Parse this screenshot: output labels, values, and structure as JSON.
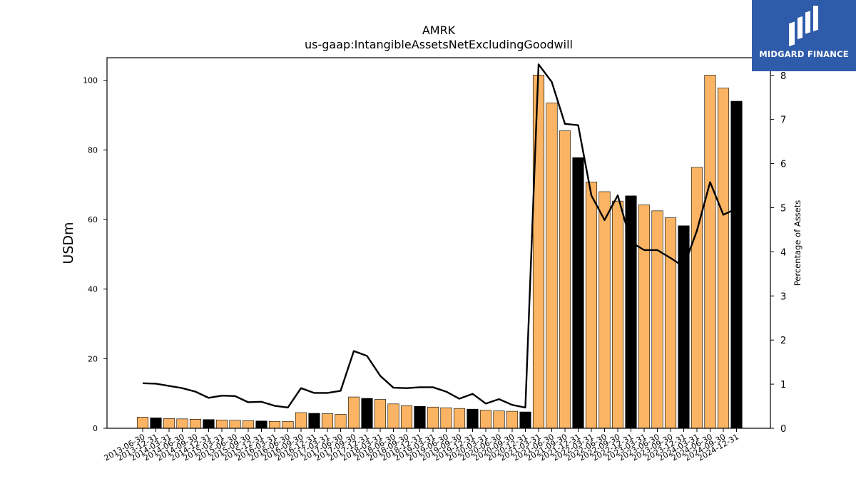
{
  "brand": {
    "name": "MIDGARD FINANCE",
    "bg_color": "#2f5bab",
    "icon": "midgard-mh-logo-icon"
  },
  "chart_data": {
    "type": "bar",
    "title": "AMRK",
    "subtitle": "us-gaap:IntangibleAssetsNetExcludingGoodwill",
    "ylabel": "USDm",
    "y2label": "Percentage of Assets",
    "ylim": [
      0,
      106.5
    ],
    "y2lim": [
      0,
      8.4
    ],
    "yticks": [
      0,
      20,
      40,
      60,
      80,
      100
    ],
    "y2ticks": [
      0,
      1,
      2,
      3,
      4,
      5,
      6,
      7,
      8
    ],
    "grid": false,
    "colors": {
      "bar": "#fbb463",
      "bar_highlight": "#000000",
      "line": "#000000"
    },
    "categories": [
      "2013-06-30",
      "2013-12-31",
      "2014-03-31",
      "2014-06-30",
      "2014-09-30",
      "2014-12-31",
      "2015-03-31",
      "2015-06-30",
      "2015-09-30",
      "2015-12-31",
      "2016-03-31",
      "2016-06-30",
      "2016-09-30",
      "2016-12-31",
      "2017-03-31",
      "2017-06-30",
      "2017-09-30",
      "2017-12-31",
      "2018-03-31",
      "2018-06-30",
      "2018-09-30",
      "2018-12-31",
      "2019-03-31",
      "2019-06-30",
      "2019-09-30",
      "2019-12-31",
      "2020-03-31",
      "2020-06-30",
      "2020-09-30",
      "2020-12-31",
      "2021-03-31",
      "2021-06-30",
      "2021-09-30",
      "2021-12-31",
      "2022-03-31",
      "2022-06-30",
      "2022-09-30",
      "2022-12-31",
      "2023-03-31",
      "2023-06-30",
      "2023-09-30",
      "2023-12-31",
      "2024-03-31",
      "2024-06-30",
      "2024-09-30",
      "2024-12-31"
    ],
    "series": [
      {
        "type": "bar",
        "values": [
          3.2,
          3.0,
          2.8,
          2.7,
          2.6,
          2.5,
          2.4,
          2.3,
          2.2,
          2.1,
          2.0,
          2.0,
          4.5,
          4.3,
          4.2,
          4.0,
          9.0,
          8.6,
          8.3,
          7.0,
          6.5,
          6.3,
          6.1,
          5.9,
          5.7,
          5.5,
          5.2,
          5.0,
          4.9,
          4.7,
          101.5,
          93.5,
          85.5,
          77.8,
          70.8,
          68.0,
          65.3,
          66.8,
          64.2,
          62.5,
          60.5,
          58.2,
          75.0,
          101.5,
          97.8,
          94.0
        ],
        "highlight": [
          false,
          true,
          false,
          false,
          false,
          true,
          false,
          false,
          false,
          true,
          false,
          false,
          false,
          true,
          false,
          false,
          false,
          true,
          false,
          false,
          false,
          true,
          false,
          false,
          false,
          true,
          false,
          false,
          false,
          true,
          false,
          false,
          false,
          true,
          false,
          false,
          false,
          true,
          false,
          false,
          false,
          true,
          false,
          false,
          false,
          true
        ]
      },
      {
        "type": "line",
        "values": [
          1.02,
          1.01,
          0.96,
          0.91,
          0.83,
          0.69,
          0.74,
          0.73,
          0.59,
          0.6,
          0.51,
          0.47,
          0.91,
          0.8,
          0.8,
          0.85,
          1.75,
          1.64,
          1.19,
          0.92,
          0.91,
          0.93,
          0.93,
          0.83,
          0.67,
          0.78,
          0.56,
          0.66,
          0.53,
          0.47,
          8.25,
          7.85,
          6.9,
          6.87,
          5.28,
          4.72,
          5.28,
          4.22,
          4.04,
          4.04,
          3.86,
          3.66,
          4.48,
          5.58,
          4.84,
          4.98
        ]
      }
    ]
  }
}
